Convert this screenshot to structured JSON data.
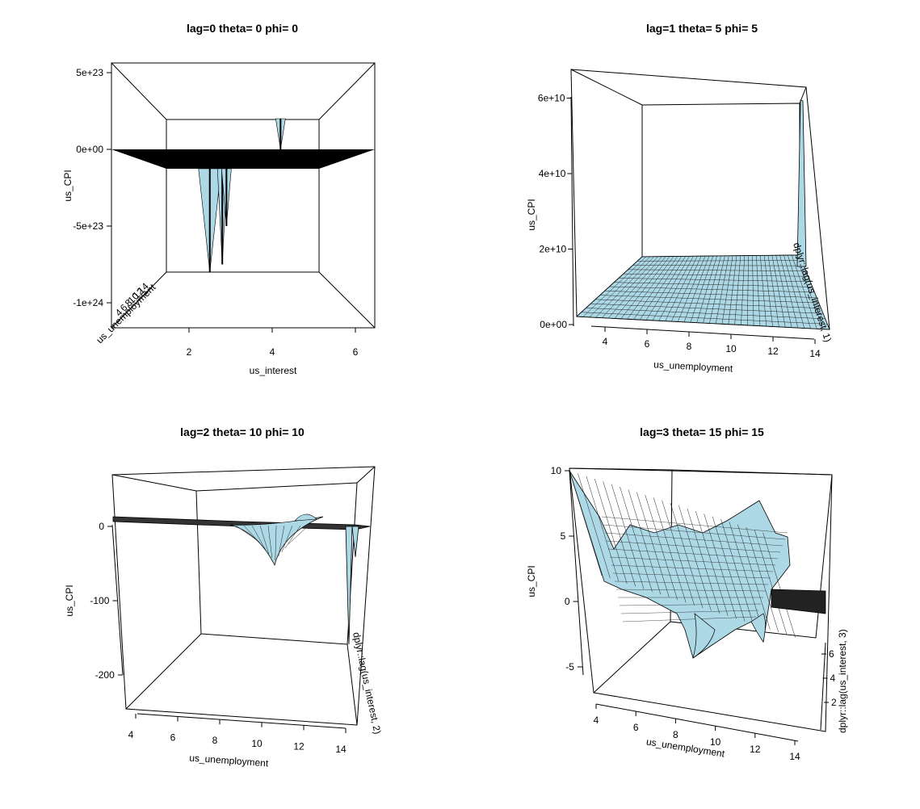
{
  "chart_data": [
    {
      "type": "surface",
      "title": "lag=0 theta= 0 phi= 0",
      "xlabel": "us_interest",
      "ylabel": "us_unemployment",
      "zlabel": "us_CPI",
      "x_ticks": [
        "2",
        "4",
        "6"
      ],
      "y_ticks": [
        "4",
        "6",
        "8",
        "10",
        "12",
        "14"
      ],
      "z_ticks": [
        "5e+23",
        "0e+00",
        "-5e+23",
        "-1e+24"
      ],
      "theta": 0,
      "phi": 0,
      "lag": 0,
      "surface_color": "#add8e6",
      "features": [
        {
          "x": 2.5,
          "z": -8e+23
        },
        {
          "x": 2.8,
          "z": -7.5e+23
        },
        {
          "x": 2.9,
          "z": -5e+23
        },
        {
          "x": 4.2,
          "z": 2e+23
        }
      ]
    },
    {
      "type": "surface",
      "title": "lag=1 theta= 5 phi= 5",
      "xlabel": "us_unemployment",
      "ylabel": "dplyr::lag(us_interest, 1)",
      "zlabel": "us_CPI",
      "x_ticks": [
        "4",
        "6",
        "8",
        "10",
        "12",
        "14"
      ],
      "z_ticks": [
        "0e+00",
        "2e+10",
        "4e+10",
        "6e+10"
      ],
      "theta": 5,
      "phi": 5,
      "lag": 1,
      "surface_color": "#add8e6"
    },
    {
      "type": "surface",
      "title": "lag=2 theta= 10 phi= 10",
      "xlabel": "us_unemployment",
      "ylabel": "dplyr::lag(us_interest, 2)",
      "zlabel": "us_CPI",
      "x_ticks": [
        "4",
        "6",
        "8",
        "10",
        "12",
        "14"
      ],
      "z_ticks": [
        "0",
        "-100",
        "-200"
      ],
      "theta": 10,
      "phi": 10,
      "lag": 2,
      "surface_color": "#add8e6"
    },
    {
      "type": "surface",
      "title": "lag=3 theta= 15 phi= 15",
      "xlabel": "us_unemployment",
      "ylabel": "dplyr::lag(us_interest, 3)",
      "zlabel": "us_CPI",
      "x_ticks": [
        "4",
        "6",
        "8",
        "10",
        "12",
        "14"
      ],
      "y_ticks": [
        "2",
        "4",
        "6"
      ],
      "z_ticks": [
        "10",
        "5",
        "0",
        "-5"
      ],
      "theta": 15,
      "phi": 15,
      "lag": 3,
      "surface_color": "#add8e6"
    }
  ]
}
